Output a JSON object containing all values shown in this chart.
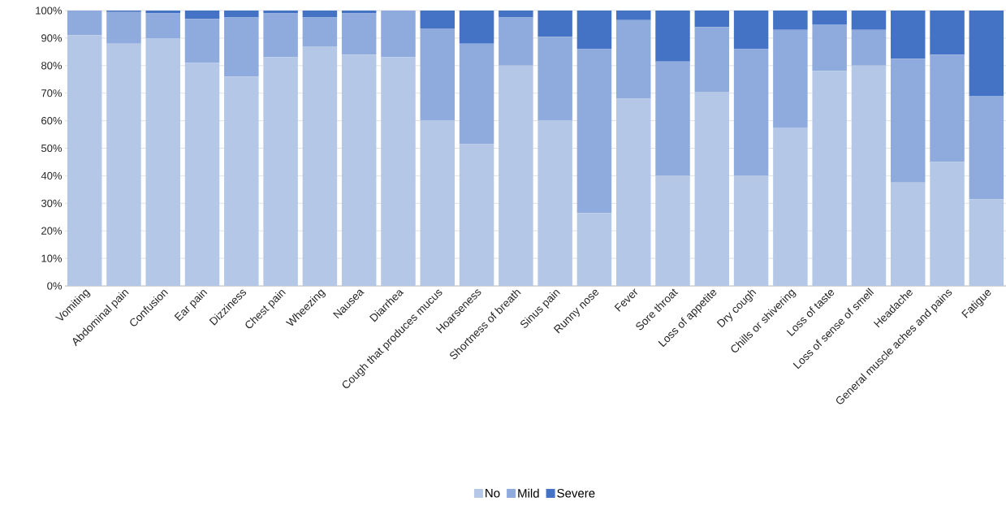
{
  "chart_data": {
    "type": "bar",
    "stacked": true,
    "categories": [
      "Vomiting",
      "Abdominal pain",
      "Confusion",
      "Ear pain",
      "Dizziness",
      "Chest pain",
      "Wheezing",
      "Nausea",
      "Diarrhea",
      "Cough that produces mucus",
      "Hoarseness",
      "Shortness of breath",
      "Sinus pain",
      "Runny nose",
      "Fever",
      "Sore throat",
      "Loss of appetite",
      "Dry cough",
      "Chills or shivering",
      "Loss of taste",
      "Loss of sense of smell",
      "Headache",
      "General muscle aches and pains",
      "Fatigue"
    ],
    "series": [
      {
        "name": "No",
        "color": "#b4c7e7",
        "values": [
          91,
          88,
          90,
          81,
          76,
          83,
          87,
          84,
          83,
          60,
          51.5,
          80,
          60,
          26.5,
          68,
          40,
          70.5,
          40,
          57.5,
          78,
          80,
          37.5,
          45,
          31.5
        ]
      },
      {
        "name": "Mild",
        "color": "#8faadc",
        "values": [
          9,
          11.5,
          9,
          16,
          21.5,
          16,
          10.5,
          15,
          17,
          33.5,
          36.5,
          17.5,
          30.5,
          59.5,
          28.5,
          41.5,
          23.5,
          46,
          35.5,
          17,
          13,
          45,
          39,
          37.5
        ]
      },
      {
        "name": "Severe",
        "color": "#4472c4",
        "values": [
          0,
          0.5,
          1,
          3,
          2.5,
          1,
          2.5,
          1,
          0,
          6.5,
          12,
          2.5,
          9.5,
          14,
          3.5,
          18.5,
          6,
          14,
          7,
          5,
          7,
          17.5,
          16,
          31
        ]
      }
    ],
    "ylim": [
      0,
      100
    ],
    "yticks": [
      {
        "value": 0,
        "label": "0%"
      },
      {
        "value": 10,
        "label": "10%"
      },
      {
        "value": 20,
        "label": "20%"
      },
      {
        "value": 30,
        "label": "30%"
      },
      {
        "value": 40,
        "label": "40%"
      },
      {
        "value": 50,
        "label": "50%"
      },
      {
        "value": 60,
        "label": "60%"
      },
      {
        "value": 70,
        "label": "70%"
      },
      {
        "value": 80,
        "label": "80%"
      },
      {
        "value": 90,
        "label": "90%"
      },
      {
        "value": 100,
        "label": "100%"
      }
    ],
    "grid": "y",
    "legend": "bottom"
  }
}
